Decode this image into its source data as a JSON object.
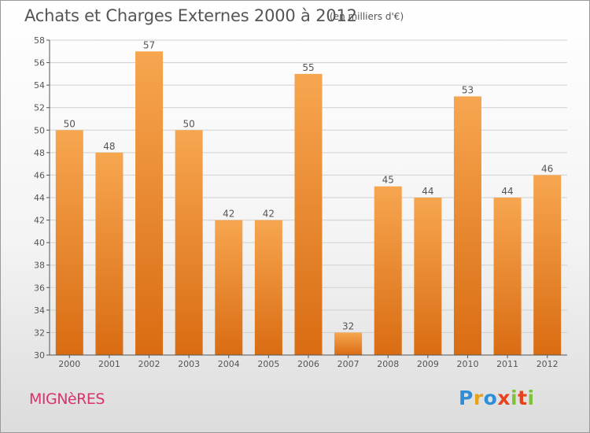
{
  "title": "Achats et Charges Externes 2000 à 2012",
  "subtitle": "(en milliers d'€)",
  "place": "MIGNèRES",
  "logo": {
    "chars": [
      "P",
      "r",
      "o",
      "x",
      "i",
      "t",
      "i"
    ]
  },
  "colors": {
    "bar_top": "#f7a650",
    "bar_bottom": "#d96c12",
    "axis": "#555555",
    "grid": "#d0d0d0",
    "label": "#555555"
  },
  "chart_data": {
    "type": "bar",
    "title": "Achats et Charges Externes 2000 à 2012",
    "subtitle": "(en milliers d'€)",
    "xlabel": "",
    "ylabel": "",
    "ylim": [
      30,
      58
    ],
    "yticks": [
      30,
      32,
      34,
      36,
      38,
      40,
      42,
      44,
      46,
      48,
      50,
      52,
      54,
      56,
      58
    ],
    "grid": true,
    "categories": [
      "2000",
      "2001",
      "2002",
      "2003",
      "2004",
      "2005",
      "2006",
      "2007",
      "2008",
      "2009",
      "2010",
      "2011",
      "2012"
    ],
    "values": [
      50,
      48,
      57,
      50,
      42,
      42,
      55,
      32,
      45,
      44,
      53,
      44,
      46
    ]
  }
}
